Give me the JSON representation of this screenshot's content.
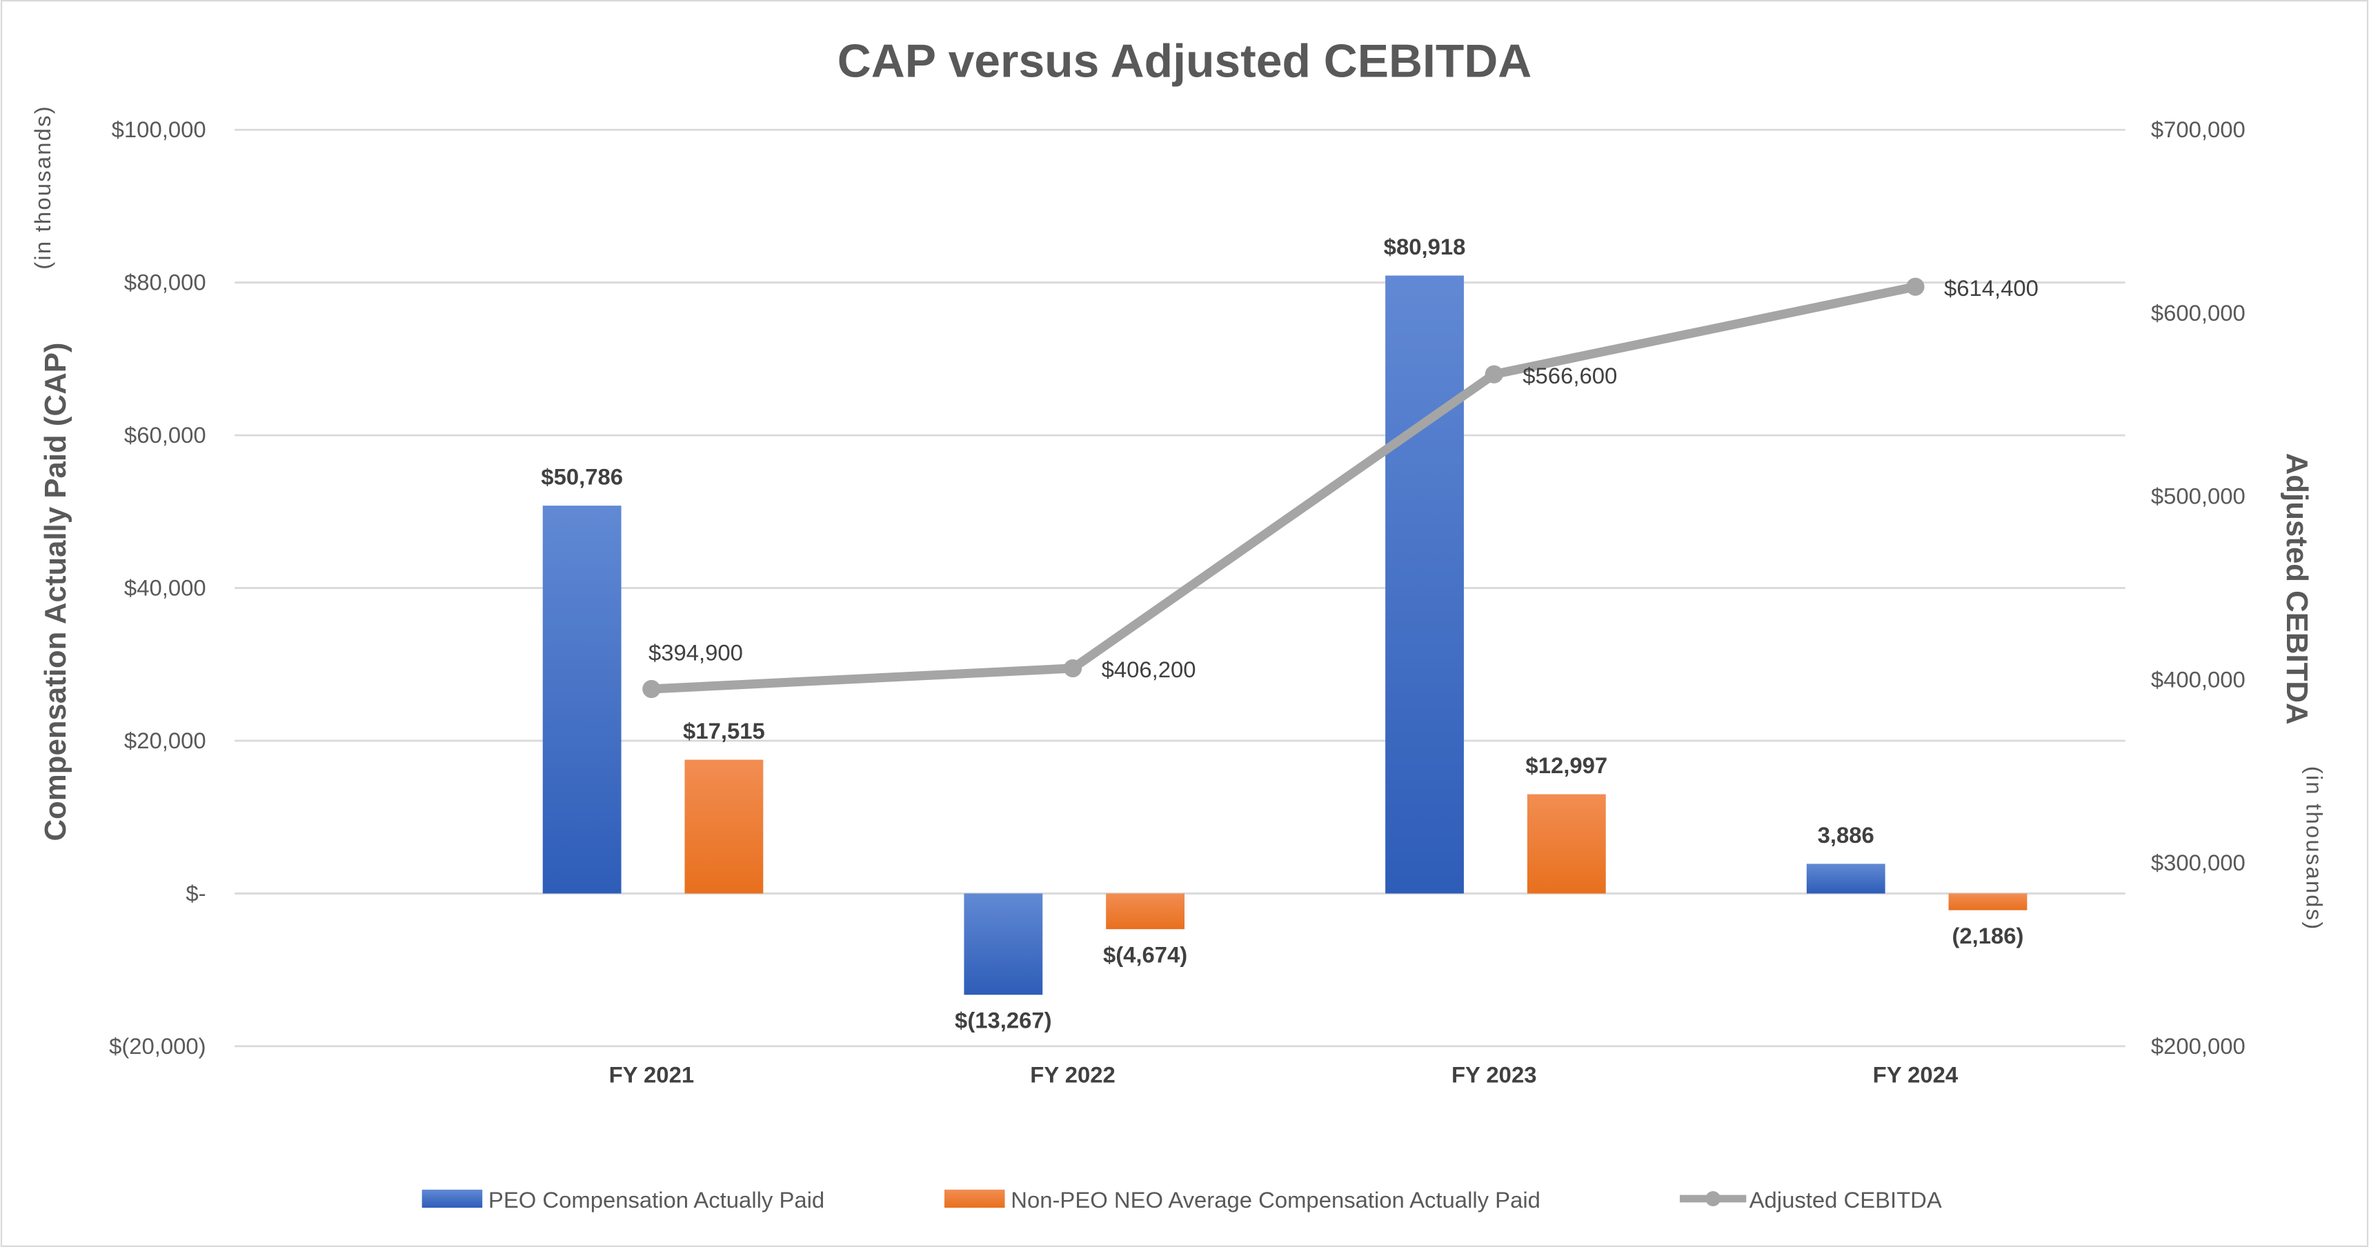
{
  "chart_data": {
    "type": "bar+line",
    "title": "CAP versus Adjusted CEBITDA",
    "categories": [
      "FY 2021",
      "FY 2022",
      "FY 2023",
      "FY 2024"
    ],
    "y_left": {
      "label": "Compensation Actually Paid (CAP)",
      "unit_note": "(in thousands)",
      "range": [
        -20000,
        100000
      ],
      "ticks": [
        -20000,
        0,
        20000,
        40000,
        60000,
        80000,
        100000
      ],
      "tick_labels": [
        "$(20,000)",
        "$-",
        "$20,000",
        "$40,000",
        "$60,000",
        "$80,000",
        "$100,000"
      ]
    },
    "y_right": {
      "label": "Adjusted CEBITDA",
      "unit_note": "(in thousands)",
      "range": [
        200000,
        700000
      ],
      "ticks": [
        200000,
        300000,
        400000,
        500000,
        600000,
        700000
      ],
      "tick_labels": [
        "$200,000",
        "$300,000",
        "$400,000",
        "$500,000",
        "$600,000",
        "$700,000"
      ]
    },
    "grid": true,
    "legend_position": "bottom",
    "series": [
      {
        "name": "PEO Compensation Actually Paid",
        "type": "bar",
        "axis": "left",
        "color": "#4472C4",
        "values": [
          50786,
          -13267,
          80918,
          3886
        ],
        "labels": [
          "$50,786",
          "$(13,267)",
          "$80,918",
          "3,886"
        ]
      },
      {
        "name": "Non-PEO NEO Average Compensation Actually Paid",
        "type": "bar",
        "axis": "left",
        "color": "#ED7D31",
        "values": [
          17515,
          -4674,
          12997,
          -2186
        ],
        "labels": [
          "$17,515",
          "$(4,674)",
          "$12,997",
          "(2,186)"
        ]
      },
      {
        "name": "Adjusted CEBITDA",
        "type": "line",
        "axis": "right",
        "color": "#A5A5A5",
        "values": [
          394900,
          406200,
          566600,
          614400
        ],
        "labels": [
          "$394,900",
          "$406,200",
          "$566,600",
          "$614,400"
        ]
      }
    ]
  }
}
